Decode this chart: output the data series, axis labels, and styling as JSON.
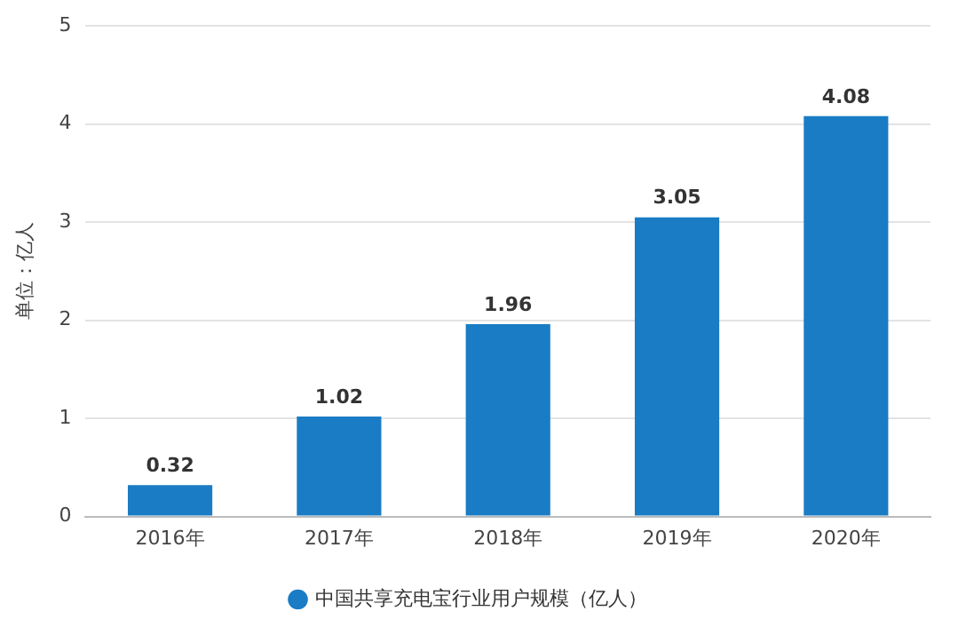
{
  "chart_data": {
    "type": "bar",
    "ylabel": "单位：亿人",
    "categories": [
      "2016年",
      "2017年",
      "2018年",
      "2019年",
      "2020年"
    ],
    "series": [
      {
        "name": "中国共享充电宝行业用户规模（亿人）",
        "color": "#1a7cc4",
        "values": [
          0.32,
          1.02,
          1.96,
          3.05,
          4.08
        ]
      }
    ],
    "ylim": [
      0,
      5
    ],
    "yticks": [
      0,
      1,
      2,
      3,
      4,
      5
    ],
    "grid": "y",
    "legend": "bottom",
    "data_labels": true
  }
}
